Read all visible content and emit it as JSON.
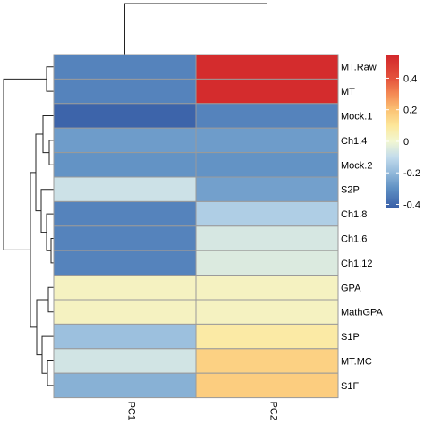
{
  "chart_data": {
    "type": "heatmap",
    "columns": [
      "PC1",
      "PC2"
    ],
    "rows": [
      "MT.Raw",
      "MT",
      "Mock.1",
      "Ch1.4",
      "Mock.2",
      "S2P",
      "Ch1.8",
      "Ch1.6",
      "Ch1.12",
      "GPA",
      "MathGPA",
      "S1P",
      "MT.MC",
      "S1F"
    ],
    "values": [
      [
        -0.33,
        0.53
      ],
      [
        -0.33,
        0.53
      ],
      [
        -0.41,
        -0.33
      ],
      [
        -0.27,
        -0.27
      ],
      [
        -0.29,
        -0.29
      ],
      [
        -0.08,
        -0.26
      ],
      [
        -0.33,
        -0.14
      ],
      [
        -0.33,
        -0.06
      ],
      [
        -0.33,
        -0.05
      ],
      [
        0.03,
        0.03
      ],
      [
        0.03,
        0.03
      ],
      [
        -0.18,
        0.08
      ],
      [
        -0.07,
        0.16
      ],
      [
        -0.22,
        0.17
      ]
    ],
    "color_scale": {
      "min": -0.42,
      "max": 0.55,
      "stops": [
        {
          "value": -0.42,
          "color": "#3a60a8"
        },
        {
          "value": -0.3,
          "color": "#5e8fc3"
        },
        {
          "value": -0.2,
          "color": "#92b9da"
        },
        {
          "value": -0.1,
          "color": "#c3dcec"
        },
        {
          "value": 0.0,
          "color": "#f2f7d2"
        },
        {
          "value": 0.1,
          "color": "#fde79a"
        },
        {
          "value": 0.2,
          "color": "#fbc274"
        },
        {
          "value": 0.3,
          "color": "#f48a54"
        },
        {
          "value": 0.4,
          "color": "#e4523c"
        },
        {
          "value": 0.55,
          "color": "#d2262b"
        }
      ]
    },
    "legend": {
      "ticks": [
        0.4,
        0.2,
        0,
        -0.2,
        -0.4
      ],
      "tick_labels": [
        "0.4",
        "0.2",
        "0",
        "-0.2",
        "-0.4"
      ],
      "position": "right"
    },
    "cell_border_color": "#9a9a9a",
    "dendrogram_color": "#222222"
  }
}
